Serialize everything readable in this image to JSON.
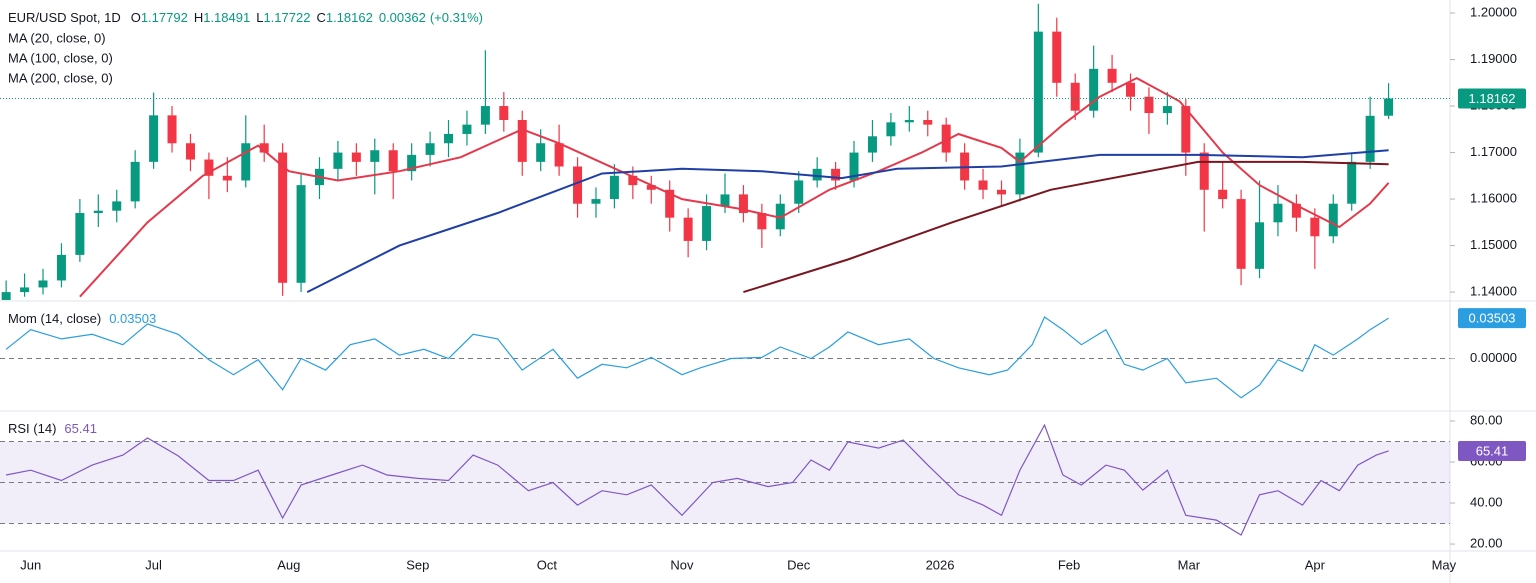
{
  "chart_data": [
    {
      "type": "candlestick",
      "title": "EUR/USD Spot, 1D",
      "ohlc_labels": [
        "O",
        "H",
        "L",
        "C"
      ],
      "change": 0.00362,
      "change_text": "(+0.31%)",
      "up_color": "#089981",
      "down_color": "#f23645",
      "xlim": [
        0,
        236
      ],
      "xticks": [
        {
          "value": 5,
          "label": "Jun"
        },
        {
          "value": 25,
          "label": "Jul"
        },
        {
          "value": 47,
          "label": "Aug"
        },
        {
          "value": 68,
          "label": "Sep"
        },
        {
          "value": 89,
          "label": "Oct"
        },
        {
          "value": 111,
          "label": "Nov"
        },
        {
          "value": 130,
          "label": "Dec"
        },
        {
          "value": 153,
          "label": "2026"
        },
        {
          "value": 174,
          "label": "Feb"
        },
        {
          "value": 193.5,
          "label": "Mar"
        },
        {
          "value": 214,
          "label": "Apr"
        },
        {
          "value": 235,
          "label": "May"
        }
      ],
      "ylim": [
        1.1383,
        1.2028
      ],
      "yticks": [
        {
          "value": 1.14,
          "label": "1.14000"
        },
        {
          "value": 1.15,
          "label": "1.15000"
        },
        {
          "value": 1.16,
          "label": "1.16000"
        },
        {
          "value": 1.17,
          "label": "1.17000"
        },
        {
          "value": 1.18,
          "label": "1.18000"
        },
        {
          "value": 1.19,
          "label": "1.19000"
        },
        {
          "value": 1.2,
          "label": "1.20000"
        }
      ],
      "x": [
        1,
        4,
        7,
        10,
        13,
        16,
        19,
        22,
        25,
        28,
        31,
        34,
        37,
        40,
        43,
        46,
        49,
        52,
        55,
        58,
        61,
        64,
        67,
        70,
        73,
        76,
        79,
        82,
        85,
        88,
        91,
        94,
        97,
        100,
        103,
        106,
        109,
        112,
        115,
        118,
        121,
        124,
        127,
        130,
        133,
        136,
        139,
        142,
        145,
        148,
        151,
        154,
        157,
        160,
        163,
        166,
        169,
        172,
        175,
        178,
        181,
        184,
        187,
        190,
        193,
        196,
        199,
        202,
        205,
        208,
        211,
        214,
        217,
        220,
        223,
        226
      ],
      "open": [
        1.138,
        1.14,
        1.141,
        1.1425,
        1.148,
        1.157,
        1.1575,
        1.1595,
        1.168,
        1.178,
        1.172,
        1.1685,
        1.165,
        1.164,
        1.172,
        1.17,
        1.142,
        1.163,
        1.1665,
        1.17,
        1.168,
        1.1705,
        1.166,
        1.1695,
        1.172,
        1.174,
        1.176,
        1.18,
        1.177,
        1.168,
        1.172,
        1.167,
        1.159,
        1.16,
        1.165,
        1.163,
        1.162,
        1.156,
        1.151,
        1.1585,
        1.161,
        1.157,
        1.1535,
        1.159,
        1.164,
        1.1665,
        1.164,
        1.17,
        1.1735,
        1.1765,
        1.177,
        1.176,
        1.17,
        1.164,
        1.162,
        1.161,
        1.17,
        1.196,
        1.185,
        1.179,
        1.188,
        1.185,
        1.182,
        1.1785,
        1.18,
        1.17,
        1.162,
        1.16,
        1.145,
        1.155,
        1.159,
        1.156,
        1.152,
        1.159,
        1.168,
        1.17792
      ],
      "high": [
        1.1425,
        1.144,
        1.145,
        1.1505,
        1.16,
        1.161,
        1.162,
        1.1705,
        1.1829,
        1.18,
        1.174,
        1.17,
        1.169,
        1.178,
        1.176,
        1.172,
        1.1655,
        1.169,
        1.1725,
        1.172,
        1.173,
        1.172,
        1.172,
        1.1745,
        1.177,
        1.179,
        1.192,
        1.183,
        1.179,
        1.175,
        1.176,
        1.169,
        1.1625,
        1.1675,
        1.167,
        1.165,
        1.164,
        1.158,
        1.161,
        1.1655,
        1.163,
        1.159,
        1.161,
        1.166,
        1.169,
        1.168,
        1.1725,
        1.177,
        1.1785,
        1.18,
        1.179,
        1.1775,
        1.172,
        1.1665,
        1.164,
        1.173,
        1.202,
        1.199,
        1.187,
        1.193,
        1.191,
        1.187,
        1.184,
        1.183,
        1.1815,
        1.172,
        1.168,
        1.162,
        1.164,
        1.163,
        1.161,
        1.158,
        1.161,
        1.17,
        1.182,
        1.18491
      ],
      "low": [
        1.137,
        1.139,
        1.1395,
        1.141,
        1.1465,
        1.154,
        1.155,
        1.158,
        1.1665,
        1.17,
        1.166,
        1.16,
        1.1615,
        1.1625,
        1.168,
        1.1392,
        1.14,
        1.16,
        1.164,
        1.165,
        1.161,
        1.16,
        1.164,
        1.167,
        1.169,
        1.1715,
        1.174,
        1.1745,
        1.165,
        1.166,
        1.165,
        1.156,
        1.156,
        1.158,
        1.16,
        1.159,
        1.153,
        1.1475,
        1.149,
        1.157,
        1.155,
        1.1495,
        1.152,
        1.157,
        1.1625,
        1.162,
        1.1625,
        1.168,
        1.1715,
        1.1745,
        1.1735,
        1.168,
        1.162,
        1.16,
        1.1585,
        1.1595,
        1.169,
        1.182,
        1.177,
        1.1775,
        1.183,
        1.179,
        1.174,
        1.176,
        1.165,
        1.153,
        1.158,
        1.1415,
        1.143,
        1.152,
        1.153,
        1.145,
        1.1505,
        1.1575,
        1.1665,
        1.17722
      ],
      "close": [
        1.14,
        1.141,
        1.1425,
        1.148,
        1.157,
        1.1575,
        1.1595,
        1.168,
        1.178,
        1.172,
        1.1685,
        1.165,
        1.164,
        1.172,
        1.17,
        1.142,
        1.163,
        1.1665,
        1.17,
        1.168,
        1.1705,
        1.166,
        1.1695,
        1.172,
        1.174,
        1.176,
        1.18,
        1.177,
        1.168,
        1.172,
        1.167,
        1.159,
        1.16,
        1.165,
        1.163,
        1.162,
        1.156,
        1.151,
        1.1585,
        1.161,
        1.157,
        1.1535,
        1.159,
        1.164,
        1.1665,
        1.164,
        1.17,
        1.1735,
        1.1765,
        1.177,
        1.176,
        1.17,
        1.164,
        1.162,
        1.161,
        1.17,
        1.196,
        1.185,
        1.179,
        1.188,
        1.185,
        1.182,
        1.1785,
        1.18,
        1.17,
        1.162,
        1.16,
        1.145,
        1.155,
        1.159,
        1.156,
        1.152,
        1.159,
        1.168,
        1.1779,
        1.18162
      ],
      "overlays": [
        {
          "name": "MA (20, close, 0)",
          "color": "#e5394b",
          "x": [
            13,
            24,
            33,
            42,
            47,
            55,
            65,
            75,
            85,
            91,
            101,
            111,
            120,
            127,
            135,
            143,
            150,
            156,
            163,
            166,
            173,
            179,
            185,
            192,
            199,
            205,
            212,
            218,
            223,
            226
          ],
          "values": [
            1.139,
            1.155,
            1.165,
            1.1715,
            1.166,
            1.164,
            1.166,
            1.169,
            1.175,
            1.172,
            1.166,
            1.16,
            1.158,
            1.156,
            1.162,
            1.166,
            1.17,
            1.174,
            1.171,
            1.168,
            1.176,
            1.182,
            1.186,
            1.181,
            1.17,
            1.163,
            1.158,
            1.154,
            1.159,
            1.1635
          ]
        },
        {
          "name": "MA (100, close, 0)",
          "color": "#1f3fa6",
          "x": [
            50,
            65,
            81,
            98,
            111,
            124,
            137,
            146,
            163,
            179,
            195,
            212,
            226
          ],
          "values": [
            1.14,
            1.15,
            1.157,
            1.1655,
            1.1665,
            1.166,
            1.1645,
            1.1665,
            1.167,
            1.1695,
            1.1695,
            1.169,
            1.1705
          ]
        },
        {
          "name": "MA (200, close, 0)",
          "color": "#7a1620",
          "x": [
            121,
            138,
            155,
            171,
            187,
            195,
            212,
            226
          ],
          "values": [
            1.14,
            1.147,
            1.155,
            1.162,
            1.166,
            1.168,
            1.168,
            1.1675
          ]
        }
      ]
    },
    {
      "type": "line",
      "title": "Mom (14, close)",
      "color": "#2a9ee0",
      "ylim": [
        -0.0446,
        0.049
      ],
      "yticks": [
        {
          "value": 0,
          "label": "0.00000"
        }
      ],
      "x": [
        1,
        5,
        10,
        15,
        20,
        24,
        29,
        34,
        38,
        42,
        46,
        49,
        53,
        57,
        61,
        65,
        69,
        73,
        77,
        81,
        85,
        90,
        94,
        98,
        102,
        106,
        111,
        114,
        119,
        124,
        127,
        132,
        135,
        138,
        143,
        148,
        152,
        156,
        161,
        164,
        168,
        170,
        173,
        176,
        180,
        183,
        186,
        190,
        193,
        198,
        202,
        205,
        208,
        212,
        214,
        217,
        221,
        223,
        226
      ],
      "values": [
        0.008,
        0.025,
        0.017,
        0.021,
        0.012,
        0.03,
        0.021,
        -0.001,
        -0.014,
        -0.001,
        -0.027,
        0,
        -0.01,
        0.012,
        0.017,
        0.003,
        0.008,
        0,
        0.021,
        0.017,
        -0.01,
        0.008,
        -0.017,
        -0.005,
        -0.008,
        0.001,
        -0.014,
        -0.008,
        0,
        0.001,
        0.01,
        0,
        0.01,
        0.023,
        0.012,
        0.017,
        0,
        -0.008,
        -0.014,
        -0.01,
        0.012,
        0.036,
        0.025,
        0.012,
        0.025,
        -0.005,
        -0.01,
        0,
        -0.021,
        -0.017,
        -0.034,
        -0.023,
        -0.001,
        -0.011,
        0.012,
        0.003,
        0.017,
        0.025,
        0.03503
      ]
    },
    {
      "type": "line",
      "title": "RSI (14)",
      "color": "#7e57c2",
      "ylim": [
        17.1,
        84.4
      ],
      "yticks": [
        {
          "value": 20,
          "label": "20.00"
        },
        {
          "value": 40,
          "label": "40.00"
        },
        {
          "value": 60,
          "label": "60.00"
        },
        {
          "value": 80,
          "label": "80.00"
        }
      ],
      "levels": [
        30,
        50,
        70
      ],
      "x": [
        1,
        5,
        10,
        15,
        20,
        24,
        29,
        34,
        38,
        42,
        46,
        49,
        54,
        59,
        63,
        68,
        73,
        77,
        81,
        86,
        90,
        94,
        98,
        102,
        106,
        111,
        116,
        120,
        125,
        129,
        132,
        135,
        138,
        143,
        147,
        151,
        156,
        160,
        163,
        166,
        170,
        173,
        176,
        180,
        183,
        186,
        190,
        193,
        198,
        202,
        205,
        208,
        212,
        215,
        218,
        221,
        224,
        226
      ],
      "values": [
        53.7,
        56,
        51,
        58.5,
        63.4,
        71.7,
        63,
        51,
        51,
        56,
        32.7,
        48.8,
        53.7,
        58.5,
        53.7,
        52,
        51,
        63.4,
        58.5,
        46,
        50,
        39,
        46,
        44,
        48.8,
        34,
        50,
        52,
        48,
        50,
        61,
        56,
        69.8,
        66.8,
        70.7,
        58.5,
        44,
        39,
        34,
        56,
        78,
        53.7,
        48.8,
        58.5,
        56,
        46.3,
        56,
        34,
        31.7,
        24.4,
        44,
        46,
        39,
        51,
        46,
        58.5,
        63.4,
        65.41
      ]
    }
  ]
}
